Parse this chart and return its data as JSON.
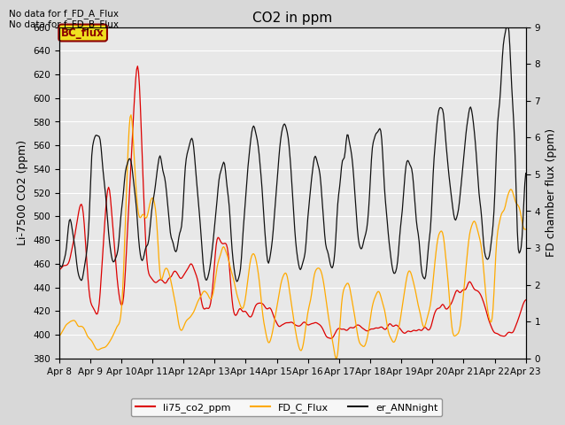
{
  "title": "CO2 in ppm",
  "ylabel_left": "Li-7500 CO2 (ppm)",
  "ylabel_right": "FD chamber flux (ppm)",
  "ylim_left": [
    380,
    660
  ],
  "ylim_right": [
    0.0,
    9.0
  ],
  "yticks_left": [
    380,
    400,
    420,
    440,
    460,
    480,
    500,
    520,
    540,
    560,
    580,
    600,
    620,
    640,
    660
  ],
  "yticks_right": [
    0.0,
    1.0,
    2.0,
    3.0,
    4.0,
    5.0,
    6.0,
    7.0,
    8.0,
    9.0
  ],
  "xticklabels": [
    "Apr 8",
    "Apr 9",
    "Apr 10",
    "Apr 11",
    "Apr 12",
    "Apr 13",
    "Apr 14",
    "Apr 15",
    "Apr 16",
    "Apr 17",
    "Apr 18",
    "Apr 19",
    "Apr 20",
    "Apr 21",
    "Apr 22",
    "Apr 23"
  ],
  "note1": "No data for f_FD_A_Flux",
  "note2": "No data for f_FD_B_Flux",
  "bc_flux_label": "BC_flux",
  "legend_labels": [
    "li75_co2_ppm",
    "FD_C_Flux",
    "er_ANNnight"
  ],
  "line_colors": [
    "#dd0000",
    "#ffaa00",
    "#111111"
  ],
  "background_color": "#d8d8d8",
  "plot_bg_color": "#e8e8e8",
  "n_points": 500,
  "title_fontsize": 11,
  "axis_fontsize": 9,
  "tick_fontsize": 7.5,
  "legend_fontsize": 8
}
